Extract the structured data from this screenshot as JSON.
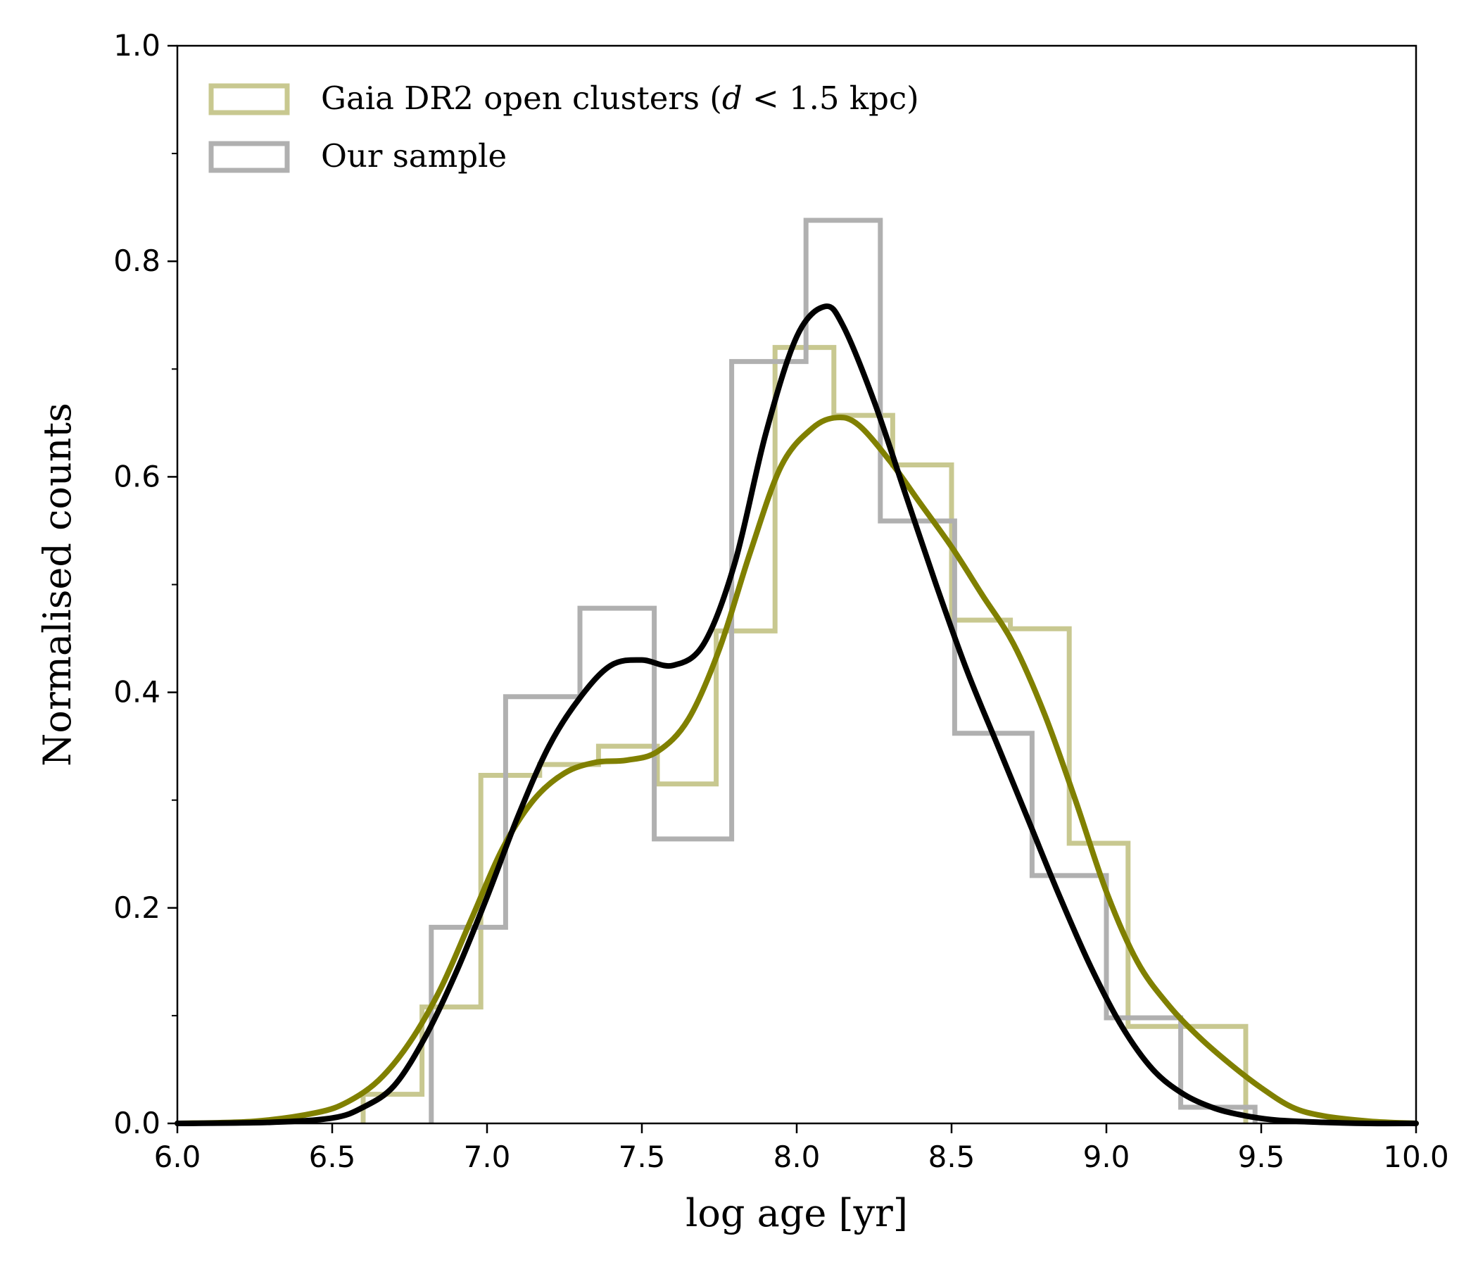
{
  "chart_data": {
    "type": "line",
    "xlabel": "log age  [yr]",
    "ylabel": "Normalised counts",
    "xlim": [
      6.0,
      10.0
    ],
    "ylim": [
      0.0,
      1.0
    ],
    "grid": false,
    "legend_position": "top-left",
    "x_ticks": [
      "6.0",
      "6.5",
      "7.0",
      "7.5",
      "8.0",
      "8.5",
      "9.0",
      "9.5",
      "10.0"
    ],
    "y_ticks": [
      "0.0",
      "0.2",
      "0.4",
      "0.6",
      "0.8",
      "1.0"
    ],
    "legend": [
      {
        "label_main": "Gaia DR2 open clusters (",
        "label_italic": "d",
        "label_rest": " < 1.5 kpc)",
        "color": "#c8c890"
      },
      {
        "label_main": "Our sample",
        "label_italic": "",
        "label_rest": "",
        "color": "#b0b0b0"
      }
    ],
    "histograms": [
      {
        "name": "Gaia DR2 open clusters (d < 1.5 kpc)",
        "color": "#c8c890",
        "edges": [
          6.6,
          6.79,
          6.98,
          7.17,
          7.36,
          7.55,
          7.74,
          7.93,
          8.12,
          8.31,
          8.5,
          8.69,
          8.88,
          9.07,
          9.26,
          9.45
        ],
        "values": [
          0.027,
          0.108,
          0.323,
          0.333,
          0.35,
          0.315,
          0.457,
          0.72,
          0.657,
          0.611,
          0.467,
          0.459,
          0.26,
          0.09,
          0.09
        ]
      },
      {
        "name": "Our sample",
        "color": "#b0b0b0",
        "edges": [
          6.82,
          7.06,
          7.3,
          7.54,
          7.79,
          8.03,
          8.27,
          8.51,
          8.76,
          9.0,
          9.24,
          9.48
        ],
        "values": [
          0.182,
          0.396,
          0.478,
          0.264,
          0.707,
          0.838,
          0.559,
          0.362,
          0.23,
          0.098,
          0.015
        ]
      }
    ],
    "series": [
      {
        "name": "Gaia DR2 open clusters (d < 1.5 kpc)",
        "color": "#808000",
        "x": [
          6.0,
          6.25,
          6.45,
          6.55,
          6.65,
          6.75,
          6.85,
          6.95,
          7.05,
          7.15,
          7.25,
          7.35,
          7.45,
          7.55,
          7.65,
          7.75,
          7.85,
          7.95,
          8.05,
          8.13,
          8.2,
          8.3,
          8.4,
          8.5,
          8.6,
          8.7,
          8.8,
          8.9,
          9.0,
          9.1,
          9.2,
          9.3,
          9.4,
          9.5,
          9.6,
          9.7,
          9.85,
          10.0
        ],
        "y": [
          0.0,
          0.002,
          0.01,
          0.02,
          0.04,
          0.075,
          0.125,
          0.19,
          0.255,
          0.3,
          0.325,
          0.335,
          0.337,
          0.345,
          0.375,
          0.44,
          0.53,
          0.61,
          0.645,
          0.655,
          0.648,
          0.615,
          0.575,
          0.535,
          0.49,
          0.445,
          0.38,
          0.3,
          0.215,
          0.15,
          0.11,
          0.08,
          0.055,
          0.033,
          0.015,
          0.007,
          0.002,
          0.0
        ]
      },
      {
        "name": "Our sample",
        "color": "#000000",
        "x": [
          6.0,
          6.3,
          6.5,
          6.6,
          6.7,
          6.8,
          6.9,
          7.0,
          7.1,
          7.2,
          7.3,
          7.4,
          7.5,
          7.6,
          7.7,
          7.8,
          7.9,
          8.0,
          8.09,
          8.15,
          8.25,
          8.35,
          8.45,
          8.55,
          8.65,
          8.75,
          8.85,
          8.95,
          9.05,
          9.15,
          9.25,
          9.35,
          9.45,
          9.55,
          9.7,
          9.85,
          10.0
        ],
        "y": [
          0.0,
          0.001,
          0.005,
          0.015,
          0.035,
          0.08,
          0.14,
          0.21,
          0.285,
          0.35,
          0.395,
          0.425,
          0.43,
          0.425,
          0.445,
          0.52,
          0.64,
          0.73,
          0.758,
          0.74,
          0.67,
          0.585,
          0.5,
          0.42,
          0.35,
          0.28,
          0.21,
          0.145,
          0.09,
          0.05,
          0.027,
          0.014,
          0.007,
          0.003,
          0.001,
          0.0,
          0.0
        ]
      }
    ]
  }
}
